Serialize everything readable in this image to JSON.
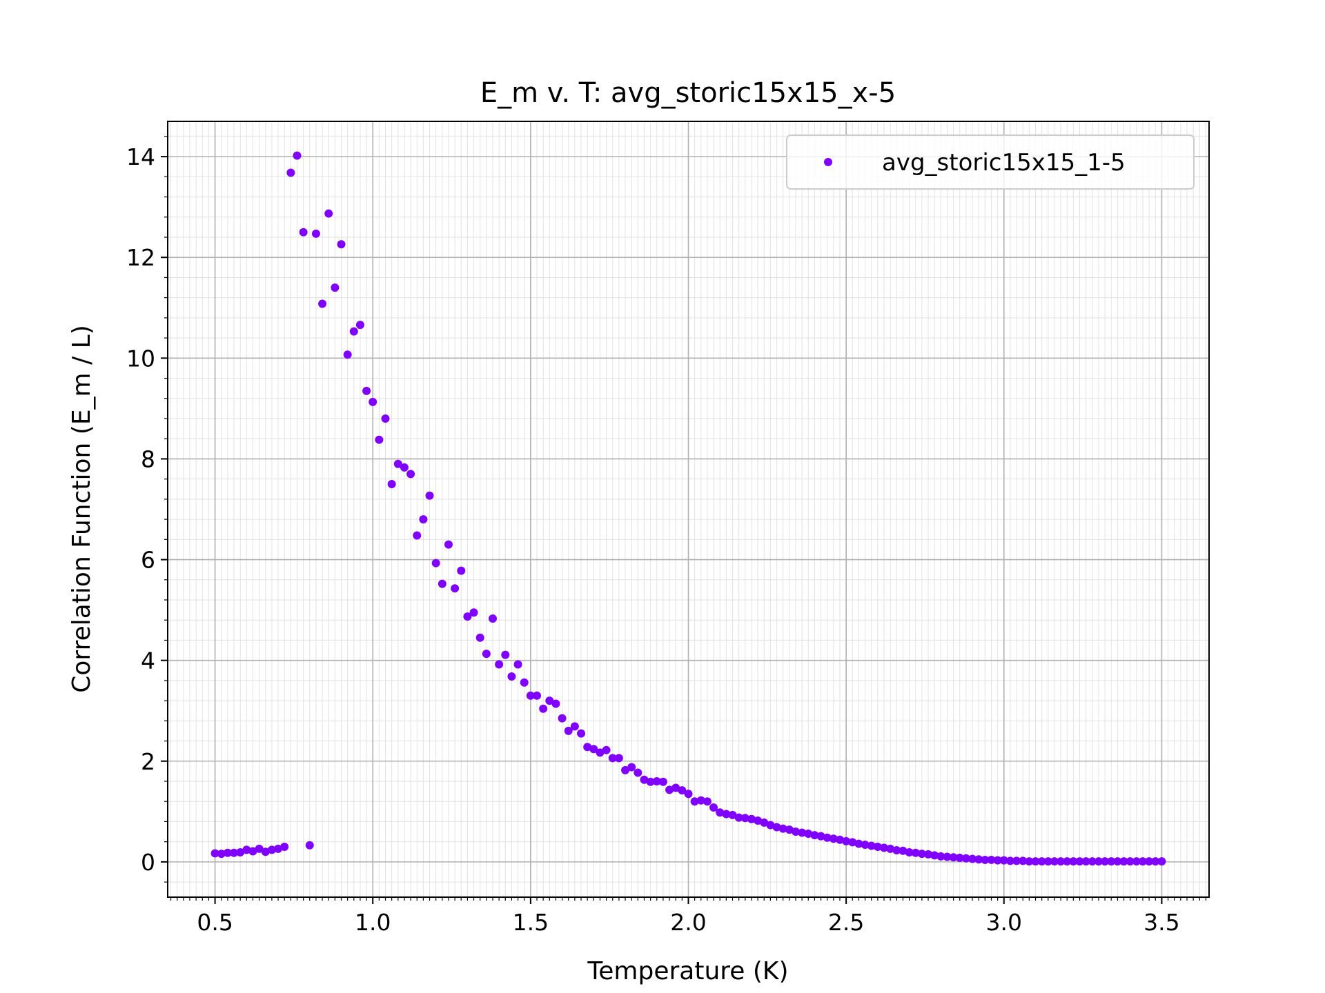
{
  "chart_data": {
    "type": "scatter",
    "title": "E_m v. T: avg_storic15x15_x-5",
    "xlabel": "Temperature (K)",
    "ylabel": "Correlation Function (E_m / L)",
    "xlim": [
      0.35,
      3.65
    ],
    "ylim": [
      -0.7,
      14.7
    ],
    "x_ticks": [
      0.5,
      1.0,
      1.5,
      2.0,
      2.5,
      3.0,
      3.5
    ],
    "x_tick_labels": [
      "0.5",
      "1.0",
      "1.5",
      "2.0",
      "2.5",
      "3.0",
      "3.5"
    ],
    "y_ticks": [
      0,
      2,
      4,
      6,
      8,
      10,
      12,
      14
    ],
    "y_tick_labels": [
      "0",
      "2",
      "4",
      "6",
      "8",
      "10",
      "12",
      "14"
    ],
    "grid": true,
    "legend_position": "top-right",
    "series": [
      {
        "name": "avg_storic15x15_1-5",
        "color": "#8000ff",
        "x": [
          0.5,
          0.52,
          0.54,
          0.56,
          0.58,
          0.6,
          0.62,
          0.64,
          0.66,
          0.68,
          0.7,
          0.72,
          0.74,
          0.76,
          0.78,
          0.8,
          0.82,
          0.84,
          0.86,
          0.88,
          0.9,
          0.92,
          0.94,
          0.96,
          0.98,
          1.0,
          1.02,
          1.04,
          1.06,
          1.08,
          1.1,
          1.12,
          1.14,
          1.16,
          1.18,
          1.2,
          1.22,
          1.24,
          1.26,
          1.28,
          1.3,
          1.32,
          1.34,
          1.36,
          1.38,
          1.4,
          1.42,
          1.44,
          1.46,
          1.48,
          1.5,
          1.52,
          1.54,
          1.56,
          1.58,
          1.6,
          1.62,
          1.64,
          1.66,
          1.68,
          1.7,
          1.72,
          1.74,
          1.76,
          1.78,
          1.8,
          1.82,
          1.84,
          1.86,
          1.88,
          1.9,
          1.92,
          1.94,
          1.96,
          1.98,
          2.0,
          2.02,
          2.04,
          2.06,
          2.08,
          2.1,
          2.12,
          2.14,
          2.16,
          2.18,
          2.2,
          2.22,
          2.24,
          2.26,
          2.28,
          2.3,
          2.32,
          2.34,
          2.36,
          2.38,
          2.4,
          2.42,
          2.44,
          2.46,
          2.48,
          2.5,
          2.52,
          2.54,
          2.56,
          2.58,
          2.6,
          2.62,
          2.64,
          2.66,
          2.68,
          2.7,
          2.72,
          2.74,
          2.76,
          2.78,
          2.8,
          2.82,
          2.84,
          2.86,
          2.88,
          2.9,
          2.92,
          2.94,
          2.96,
          2.98,
          3.0,
          3.02,
          3.04,
          3.06,
          3.08,
          3.1,
          3.12,
          3.14,
          3.16,
          3.18,
          3.2,
          3.22,
          3.24,
          3.26,
          3.28,
          3.3,
          3.32,
          3.34,
          3.36,
          3.38,
          3.4,
          3.42,
          3.44,
          3.46,
          3.48,
          3.5
        ],
        "y": [
          0.17,
          0.16,
          0.18,
          0.18,
          0.19,
          0.24,
          0.21,
          0.26,
          0.2,
          0.24,
          0.26,
          0.3,
          13.68,
          14.02,
          12.5,
          0.33,
          12.47,
          11.08,
          12.87,
          11.4,
          12.26,
          10.07,
          10.53,
          10.66,
          9.35,
          9.13,
          8.38,
          8.8,
          7.5,
          7.9,
          7.83,
          7.7,
          6.48,
          6.8,
          7.27,
          5.93,
          5.52,
          6.3,
          5.43,
          5.78,
          4.87,
          4.95,
          4.45,
          4.13,
          4.83,
          3.92,
          4.11,
          3.68,
          3.92,
          3.56,
          3.3,
          3.3,
          3.04,
          3.2,
          3.14,
          2.85,
          2.6,
          2.69,
          2.55,
          2.28,
          2.24,
          2.17,
          2.22,
          2.06,
          2.06,
          1.82,
          1.88,
          1.77,
          1.63,
          1.59,
          1.6,
          1.59,
          1.43,
          1.47,
          1.42,
          1.35,
          1.2,
          1.22,
          1.2,
          1.08,
          0.98,
          0.95,
          0.93,
          0.88,
          0.87,
          0.85,
          0.82,
          0.78,
          0.73,
          0.69,
          0.66,
          0.64,
          0.6,
          0.58,
          0.56,
          0.53,
          0.51,
          0.48,
          0.46,
          0.44,
          0.41,
          0.39,
          0.36,
          0.34,
          0.32,
          0.3,
          0.28,
          0.26,
          0.23,
          0.22,
          0.19,
          0.18,
          0.16,
          0.15,
          0.13,
          0.11,
          0.1,
          0.09,
          0.08,
          0.07,
          0.06,
          0.05,
          0.04,
          0.04,
          0.03,
          0.03,
          0.02,
          0.02,
          0.02,
          0.01,
          0.01,
          0.01,
          0.01,
          0.01,
          0.01,
          0.01,
          0.01,
          0.01,
          0.01,
          0.01,
          0.01,
          0.01,
          0.01,
          0.01,
          0.01,
          0.01,
          0.01,
          0.01,
          0.01,
          0.01,
          0.01
        ]
      }
    ]
  }
}
